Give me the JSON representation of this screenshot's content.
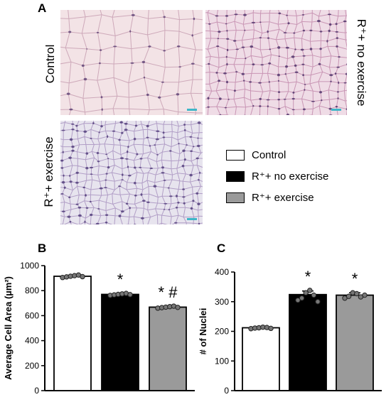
{
  "figure": {
    "panel_a": {
      "letter": "A",
      "row_label_control": "Control",
      "row_label_no_exercise": "R⁺+ no exercise",
      "row_label_exercise": "R⁺+ exercise"
    },
    "legend": {
      "items": [
        {
          "label": "Control",
          "color": "#ffffff"
        },
        {
          "label": "R⁺+ no exercise",
          "color": "#000000"
        },
        {
          "label": "R⁺+ exercise",
          "color": "#9a9a9a"
        }
      ]
    },
    "panel_b": {
      "letter": "B"
    },
    "panel_c": {
      "letter": "C"
    }
  },
  "chart_data": [
    {
      "type": "bar",
      "title": "",
      "categories": [
        "Control",
        "R⁺+ no exercise",
        "R⁺+ exercise"
      ],
      "values": [
        915,
        770,
        668
      ],
      "sem": [
        8,
        6,
        6
      ],
      "colors": [
        "#ffffff",
        "#000000",
        "#9a9a9a"
      ],
      "points": [
        [
          905,
          910,
          915,
          920,
          925,
          912
        ],
        [
          762,
          766,
          770,
          774,
          778,
          768
        ],
        [
          660,
          664,
          668,
          672,
          676,
          666
        ]
      ],
      "annotations": [
        "",
        "*",
        "* #"
      ],
      "ylabel": "Average Cell Area (µm²)",
      "ylim": [
        0,
        1000
      ],
      "yticks": [
        0,
        200,
        400,
        600,
        800,
        1000
      ]
    },
    {
      "type": "bar",
      "title": "",
      "categories": [
        "Control",
        "R⁺+ no exercise",
        "R⁺+ exercise"
      ],
      "values": [
        212,
        324,
        322
      ],
      "sem": [
        3,
        12,
        8
      ],
      "colors": [
        "#ffffff",
        "#000000",
        "#9a9a9a"
      ],
      "points": [
        [
          209,
          211,
          212,
          214,
          213,
          210
        ],
        [
          305,
          312,
          330,
          338,
          322,
          300
        ],
        [
          312,
          318,
          330,
          327,
          316,
          322
        ]
      ],
      "annotations": [
        "",
        "*",
        "*"
      ],
      "ylabel": "# of Nuclei",
      "ylim": [
        0,
        400
      ],
      "yticks": [
        0,
        100,
        200,
        300,
        400
      ]
    }
  ]
}
